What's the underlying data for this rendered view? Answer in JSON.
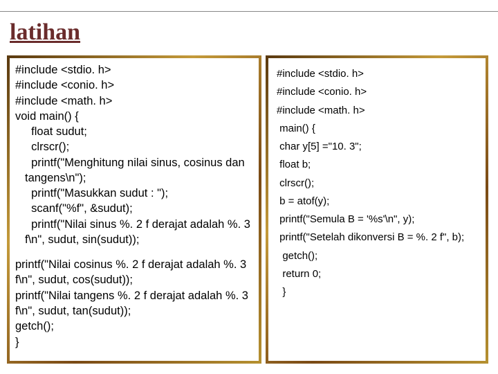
{
  "title": "latihan",
  "left_panel": {
    "lines": [
      "#include <stdio. h>",
      "#include <conio. h>",
      "#include <math. h>",
      "void main() {",
      "  float sudut;",
      "  clrscr();",
      "  printf(\"Menghitung nilai sinus, cosinus dan tangens\\n\");",
      "  printf(\"Masukkan sudut : \");",
      "  scanf(\"%f\", &sudut);",
      "  printf(\"Nilai sinus %. 2 f derajat adalah %. 3 f\\n\", sudut, sin(sudut));",
      "",
      "printf(\"Nilai cosinus %. 2 f derajat adalah %. 3 f\\n\", sudut, cos(sudut));",
      "printf(\"Nilai tangens %. 2 f derajat adalah %. 3 f\\n\", sudut, tan(sudut));",
      "getch();",
      "}"
    ]
  },
  "right_panel": {
    "lines": [
      "#include <stdio. h>",
      "#include <conio. h>",
      "#include <math. h>",
      " main() {",
      " char y[5] =\"10. 3\";",
      " float b;",
      " clrscr();",
      " b = atof(y);",
      " printf(\"Semula B = '%s'\\n\", y);",
      " printf(\"Setelah dikonversi B = %. 2 f\", b);",
      "  getch();",
      "  return 0;",
      "  }"
    ]
  },
  "colors": {
    "title_color": "#6a2c2c",
    "border_gradient": [
      "#5b3a10",
      "#c49a3a",
      "#7a4a15",
      "#b59030"
    ],
    "background": "#ffffff",
    "rule": "#888888",
    "text": "#000000"
  }
}
